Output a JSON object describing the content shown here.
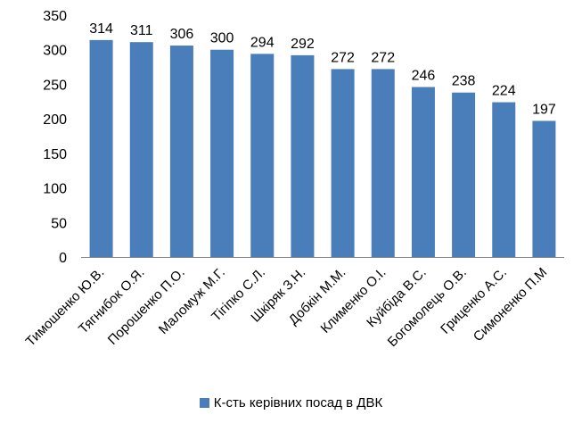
{
  "chart_data": {
    "type": "bar",
    "categories": [
      "Тимошенко Ю.В.",
      "Тягнибок О.Я.",
      "Порошенко П.О.",
      "Маломуж М.Г.",
      "Тігіпко С.Л.",
      "Шкіряк З.Н.",
      "Добкін М.М.",
      "Клименко О.І.",
      "Куйбіда В.С.",
      "Богомолець О.В.",
      "Гриценко А.С.",
      "Симоненко П.М"
    ],
    "series": [
      {
        "name": "К-сть керівних посад в ДВК",
        "values": [
          314,
          311,
          306,
          300,
          294,
          292,
          272,
          272,
          246,
          238,
          224,
          197
        ]
      }
    ],
    "ylim": [
      0,
      350
    ],
    "yticks": [
      0,
      50,
      100,
      150,
      200,
      250,
      300,
      350
    ],
    "grid": false,
    "legend": "bottom",
    "bar_color": "#4a7ebb"
  }
}
